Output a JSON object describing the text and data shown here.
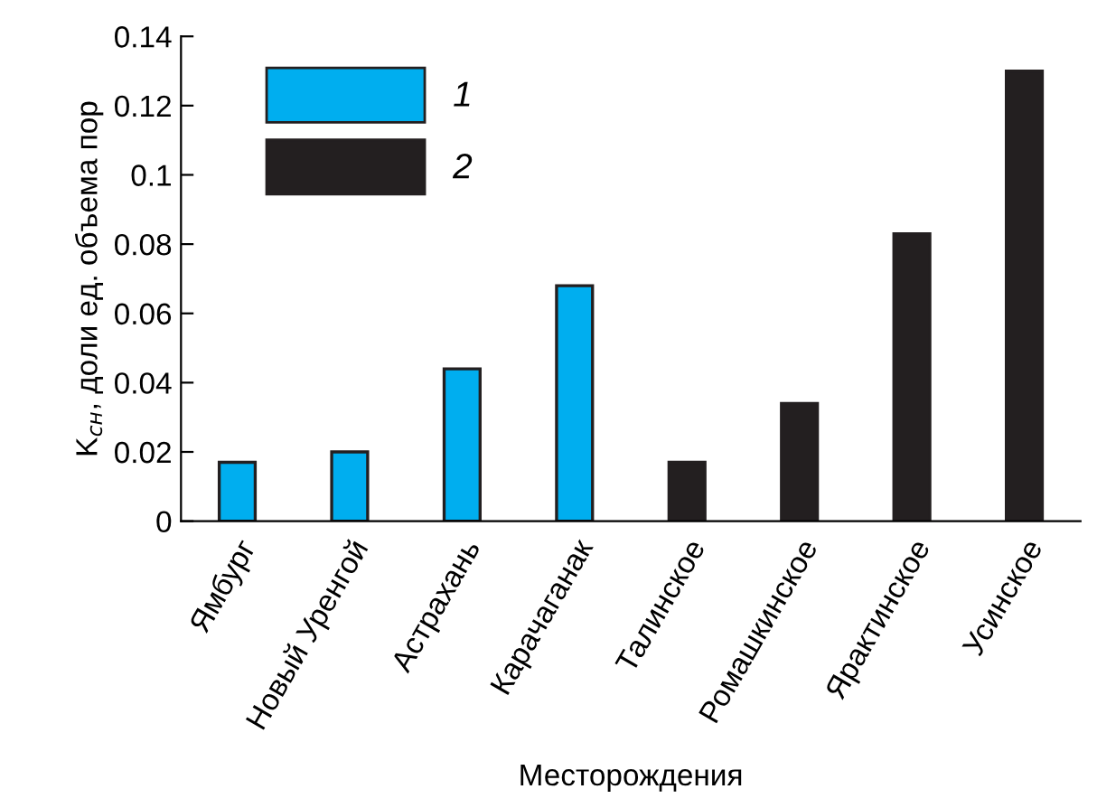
{
  "chart_data": {
    "type": "bar",
    "xlabel": "Месторождения",
    "ylabel": "K$_{сн}$, доли ед. объема пор",
    "categories": [
      "Ямбург",
      "Новый Уренгой",
      "Астрахань",
      "Карачаганак",
      "Талинское",
      "Ромашкинское",
      "Ярактинское",
      "Усинское"
    ],
    "series": [
      {
        "name": "1",
        "color": "#00aeef",
        "values": [
          0.017,
          0.02,
          0.044,
          0.068,
          null,
          null,
          null,
          null
        ]
      },
      {
        "name": "2",
        "color": "#231f20",
        "values": [
          null,
          null,
          null,
          null,
          0.017,
          0.034,
          0.083,
          0.13
        ]
      }
    ],
    "ylim": [
      0,
      0.14
    ],
    "yticks": [
      0,
      0.02,
      0.04,
      0.06,
      0.08,
      0.1,
      0.12,
      0.14
    ],
    "grid": false,
    "legend": "top left"
  }
}
